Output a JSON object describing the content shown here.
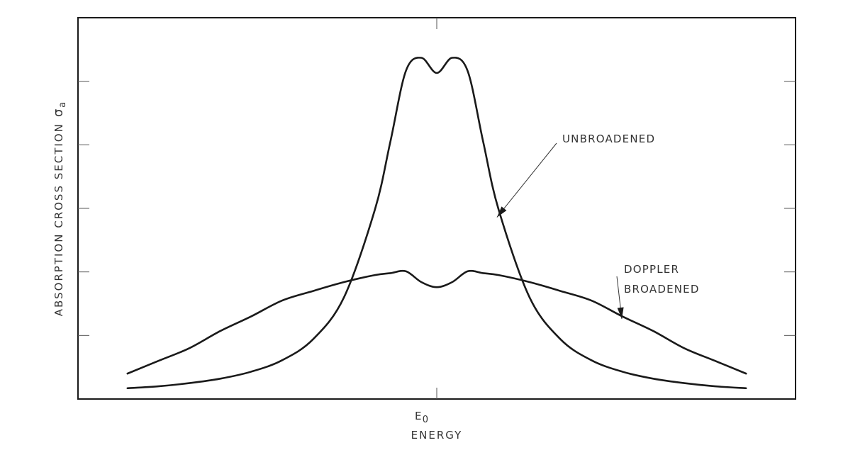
{
  "chart_data": {
    "type": "line",
    "title": "",
    "xlabel": "ENERGY",
    "ylabel": "ABSORPTION CROSS SECTION",
    "ylabel_symbol": "σ",
    "ylabel_subscript": "a",
    "x_ticks": [
      {
        "value": 0,
        "label": "E",
        "subscript": "0"
      }
    ],
    "xlim": [
      -5.8,
      5.8
    ],
    "ylim": [
      0,
      6
    ],
    "y_tick_count": 5,
    "grid": false,
    "x": [
      -5,
      -4.5,
      -4,
      -3.5,
      -3,
      -2.5,
      -2,
      -1.5,
      -1,
      -0.75,
      -0.5,
      -0.25,
      0,
      0.25,
      0.5,
      0.75,
      1,
      1.5,
      2,
      2.5,
      3,
      3.5,
      4,
      4.5,
      5
    ],
    "series": [
      {
        "name": "UNBROADENED",
        "values": [
          0.17,
          0.2,
          0.25,
          0.32,
          0.43,
          0.61,
          0.94,
          1.6,
          2.98,
          4.05,
          5.16,
          5.37,
          5.13,
          5.37,
          5.16,
          4.05,
          2.98,
          1.6,
          0.94,
          0.61,
          0.43,
          0.32,
          0.25,
          0.2,
          0.17
        ]
      },
      {
        "name": "DOPPLER BROADENED",
        "values": [
          0.4,
          0.6,
          0.8,
          1.07,
          1.3,
          1.55,
          1.7,
          1.84,
          1.95,
          1.98,
          2.01,
          1.84,
          1.76,
          1.84,
          2.01,
          1.98,
          1.95,
          1.84,
          1.7,
          1.55,
          1.3,
          1.07,
          0.8,
          0.6,
          0.4
        ]
      }
    ],
    "annotations": [
      {
        "text": "UNBROADENED",
        "series": "UNBROADENED"
      },
      {
        "text": "DOPPLER",
        "text2": "BROADENED",
        "series": "DOPPLER BROADENED"
      }
    ]
  }
}
